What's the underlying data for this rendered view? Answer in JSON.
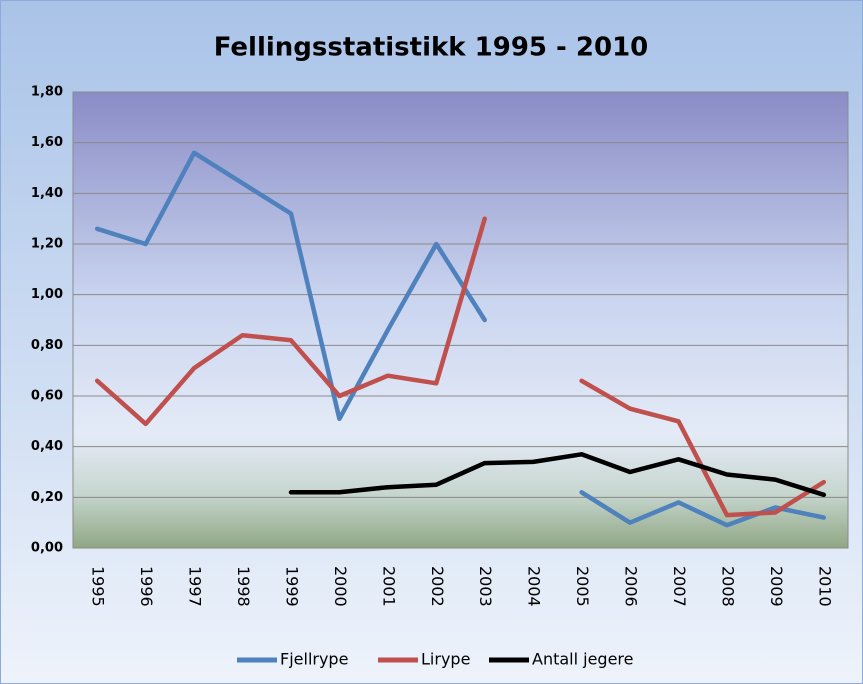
{
  "chart_data": {
    "type": "line",
    "title": "Fellingsstatistikk 1995 - 2010",
    "categories": [
      "1995",
      "1996",
      "1997",
      "1998",
      "1999",
      "2000",
      "2001",
      "2002",
      "2003",
      "2004",
      "2005",
      "2006",
      "2007",
      "2008",
      "2009",
      "2010"
    ],
    "series": [
      {
        "name": "Fjellrype",
        "color": "#4f81bd",
        "values": [
          1.26,
          1.2,
          1.56,
          1.44,
          1.32,
          0.51,
          0.86,
          1.2,
          0.9,
          null,
          0.22,
          0.1,
          0.18,
          0.09,
          0.16,
          0.12
        ]
      },
      {
        "name": "Lirype",
        "color": "#c0504d",
        "values": [
          0.66,
          0.49,
          0.71,
          0.84,
          0.82,
          0.6,
          0.68,
          0.65,
          1.3,
          null,
          0.66,
          0.55,
          0.5,
          0.13,
          0.14,
          0.26
        ]
      },
      {
        "name": "Antall jegere",
        "color": "#000000",
        "values": [
          null,
          null,
          null,
          null,
          0.22,
          0.22,
          0.24,
          0.25,
          0.335,
          0.34,
          0.37,
          0.3,
          0.35,
          0.29,
          0.27,
          0.21
        ]
      }
    ],
    "ylim": [
      0,
      1.8
    ],
    "yticks": [
      {
        "value": 0,
        "label": "0,00"
      },
      {
        "value": 0.2,
        "label": "0,20"
      },
      {
        "value": 0.4,
        "label": "0,40"
      },
      {
        "value": 0.6,
        "label": "0,60"
      },
      {
        "value": 0.8,
        "label": "0,80"
      },
      {
        "value": 1.0,
        "label": "1,00"
      },
      {
        "value": 1.2,
        "label": "1,20"
      },
      {
        "value": 1.4,
        "label": "1,40"
      },
      {
        "value": 1.6,
        "label": "1,60"
      },
      {
        "value": 1.8,
        "label": "1,80"
      }
    ],
    "grid": true,
    "legend": "bottom"
  }
}
